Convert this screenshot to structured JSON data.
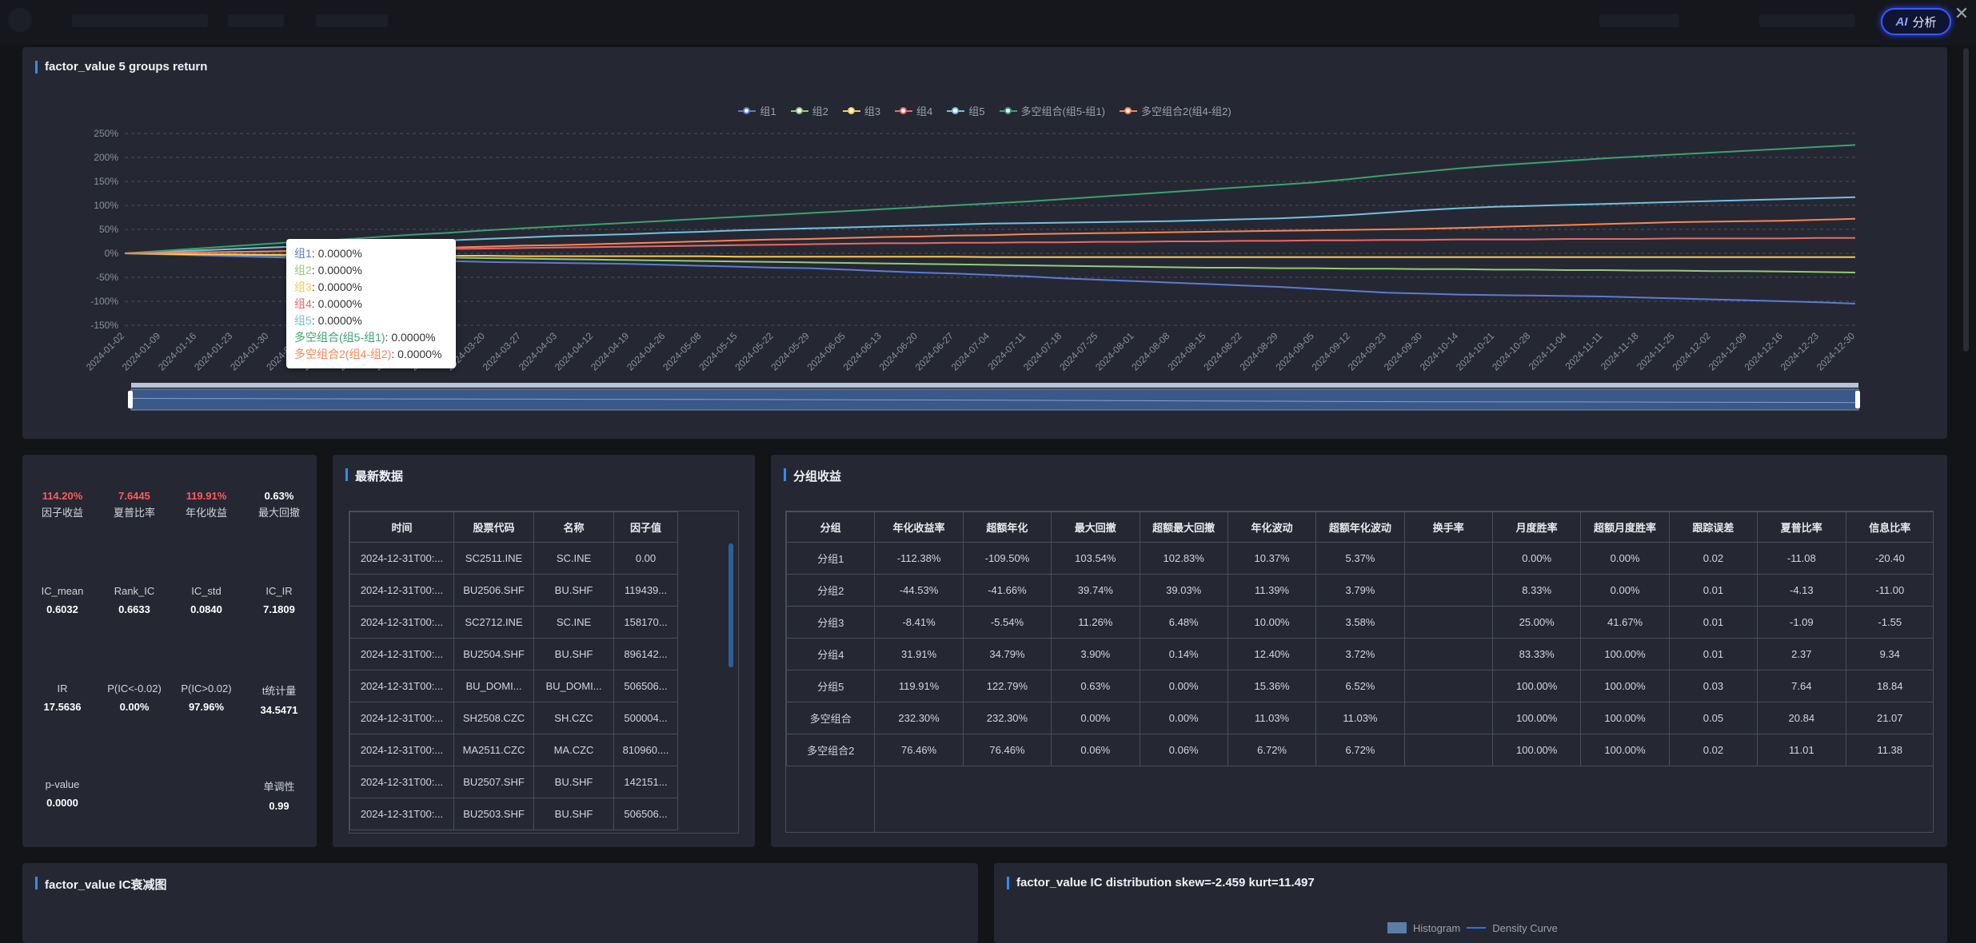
{
  "header": {
    "ai_label": "分析",
    "ai_badge": "AI",
    "close_glyph": "✕"
  },
  "chart_panel": {
    "title": "factor_value 5 groups return",
    "chart_data": {
      "type": "line",
      "ylim": [
        -150,
        250
      ],
      "yticks": [
        "250%",
        "200%",
        "150%",
        "100%",
        "50%",
        "0%",
        "-50%",
        "-100%",
        "-150%"
      ],
      "x": [
        "2024-01-02",
        "2024-01-09",
        "2024-01-16",
        "2024-01-23",
        "2024-01-30",
        "2024-02-06",
        "2024-02-21",
        "2024-02-28",
        "2024-03-06",
        "2024-03-13",
        "2024-03-20",
        "2024-03-27",
        "2024-04-03",
        "2024-04-12",
        "2024-04-19",
        "2024-04-26",
        "2024-05-08",
        "2024-05-15",
        "2024-05-22",
        "2024-05-29",
        "2024-06-05",
        "2024-06-13",
        "2024-06-20",
        "2024-06-27",
        "2024-07-04",
        "2024-07-11",
        "2024-07-18",
        "2024-07-25",
        "2024-08-01",
        "2024-08-08",
        "2024-08-15",
        "2024-08-22",
        "2024-08-29",
        "2024-09-05",
        "2024-09-12",
        "2024-09-23",
        "2024-09-30",
        "2024-10-14",
        "2024-10-21",
        "2024-10-28",
        "2024-11-04",
        "2024-11-11",
        "2024-11-18",
        "2024-11-25",
        "2024-12-02",
        "2024-12-09",
        "2024-12-16",
        "2024-12-23",
        "2024-12-30"
      ],
      "series": [
        {
          "name": "组1",
          "color": "#5b7bd5",
          "values": [
            0,
            -2,
            -4,
            -6,
            -8,
            -10,
            -11,
            -13,
            -15,
            -16,
            -18,
            -19,
            -20,
            -21,
            -22,
            -24,
            -26,
            -28,
            -30,
            -31,
            -34,
            -37,
            -40,
            -42,
            -45,
            -48,
            -52,
            -55,
            -58,
            -61,
            -64,
            -67,
            -70,
            -74,
            -78,
            -82,
            -84,
            -86,
            -87,
            -88,
            -89,
            -90,
            -92,
            -94,
            -96,
            -98,
            -100,
            -102,
            -105
          ]
        },
        {
          "name": "组2",
          "color": "#91cc75",
          "values": [
            0,
            -1,
            -2,
            -3,
            -4,
            -5,
            -6,
            -7,
            -8,
            -9,
            -10,
            -11,
            -12,
            -13,
            -14,
            -15,
            -16,
            -17,
            -18,
            -19,
            -20,
            -21,
            -22,
            -23,
            -24,
            -25,
            -26,
            -27,
            -28,
            -29,
            -30,
            -30,
            -31,
            -31,
            -32,
            -32,
            -33,
            -33,
            -34,
            -34,
            -35,
            -35,
            -36,
            -36,
            -37,
            -37,
            -38,
            -39,
            -40
          ]
        },
        {
          "name": "组3",
          "color": "#fac858",
          "values": [
            0,
            -1,
            -2,
            -2,
            -3,
            -3,
            -4,
            -4,
            -5,
            -5,
            -5,
            -6,
            -6,
            -6,
            -6,
            -6,
            -6,
            -7,
            -7,
            -7,
            -7,
            -7,
            -7,
            -7,
            -8,
            -8,
            -8,
            -8,
            -8,
            -8,
            -8,
            -8,
            -8,
            -8,
            -8,
            -8,
            -8,
            -8,
            -8,
            -8,
            -8,
            -8,
            -8,
            -8,
            -8,
            -8,
            -8,
            -8,
            -8
          ]
        },
        {
          "name": "组4",
          "color": "#ee6666",
          "values": [
            0,
            1,
            2,
            3,
            4,
            5,
            6,
            7,
            8,
            9,
            10,
            11,
            12,
            13,
            14,
            15,
            16,
            17,
            18,
            19,
            20,
            21,
            21,
            22,
            22,
            23,
            23,
            24,
            24,
            25,
            25,
            26,
            26,
            27,
            27,
            28,
            28,
            29,
            29,
            29,
            30,
            30,
            30,
            31,
            31,
            31,
            31,
            32,
            32
          ]
        },
        {
          "name": "组5",
          "color": "#73c0de",
          "values": [
            0,
            3,
            6,
            9,
            12,
            15,
            18,
            21,
            24,
            27,
            30,
            33,
            36,
            38,
            40,
            43,
            45,
            48,
            50,
            52,
            54,
            56,
            58,
            60,
            62,
            63,
            64,
            65,
            66,
            67,
            69,
            71,
            73,
            76,
            80,
            85,
            90,
            94,
            97,
            99,
            101,
            103,
            105,
            107,
            109,
            111,
            113,
            115,
            117
          ]
        },
        {
          "name": "多空组合(组5-组1)",
          "color": "#3ba272",
          "values": [
            0,
            5,
            10,
            15,
            20,
            25,
            29,
            34,
            39,
            43,
            48,
            52,
            56,
            60,
            64,
            68,
            72,
            76,
            80,
            84,
            88,
            92,
            96,
            100,
            104,
            108,
            113,
            118,
            123,
            128,
            133,
            138,
            143,
            148,
            155,
            163,
            170,
            177,
            183,
            188,
            193,
            198,
            202,
            206,
            210,
            214,
            218,
            222,
            226
          ]
        },
        {
          "name": "多空组合2(组4-组2)",
          "color": "#fc8452",
          "values": [
            0,
            1,
            2,
            3,
            4,
            6,
            7,
            9,
            11,
            12,
            14,
            16,
            17,
            19,
            21,
            23,
            25,
            27,
            29,
            30,
            32,
            34,
            35,
            37,
            38,
            40,
            41,
            42,
            43,
            44,
            45,
            46,
            47,
            48,
            49,
            50,
            51,
            53,
            55,
            57,
            59,
            61,
            63,
            65,
            66,
            67,
            68,
            70,
            72
          ]
        }
      ]
    },
    "tooltip": [
      {
        "name": "组1",
        "value": "0.0000%",
        "color": "#5b7bd5"
      },
      {
        "name": "组2",
        "value": "0.0000%",
        "color": "#91cc75"
      },
      {
        "name": "组3",
        "value": "0.0000%",
        "color": "#fac858"
      },
      {
        "name": "组4",
        "value": "0.0000%",
        "color": "#ee6666"
      },
      {
        "name": "组5",
        "value": "0.0000%",
        "color": "#73c0de"
      },
      {
        "name": "多空组合(组5-组1)",
        "value": "0.0000%",
        "color": "#3ba272"
      },
      {
        "name": "多空组合2(组4-组2)",
        "value": "0.0000%",
        "color": "#fc8452"
      }
    ]
  },
  "stats": {
    "row1": [
      {
        "value": "114.20%",
        "label": "因子收益",
        "color": "#ff5b5b"
      },
      {
        "value": "7.6445",
        "label": "夏普比率",
        "color": "#ff5b5b"
      },
      {
        "value": "119.91%",
        "label": "年化收益",
        "color": "#ff5b5b"
      },
      {
        "value": "0.63%",
        "label": "最大回撤",
        "color": "#ffffff"
      }
    ],
    "row2": [
      {
        "label": "IC_mean",
        "value": "0.6032"
      },
      {
        "label": "Rank_IC",
        "value": "0.6633"
      },
      {
        "label": "IC_std",
        "value": "0.0840"
      },
      {
        "label": "IC_IR",
        "value": "7.1809"
      }
    ],
    "row3": [
      {
        "label": "IR",
        "value": "17.5636"
      },
      {
        "label": "P(IC<-0.02)",
        "value": "0.00%"
      },
      {
        "label": "P(IC>0.02)",
        "value": "97.96%"
      },
      {
        "label": "t统计量",
        "value": "34.5471"
      }
    ],
    "row4": [
      {
        "label": "p-value",
        "value": "0.0000"
      },
      {
        "label": "单调性",
        "value": "0.99"
      }
    ]
  },
  "latest": {
    "title": "最新数据",
    "columns": [
      "时间",
      "股票代码",
      "名称",
      "因子值"
    ],
    "rows": [
      [
        "2024-12-31T00:...",
        "SC2511.INE",
        "SC.INE",
        "0.00"
      ],
      [
        "2024-12-31T00:...",
        "BU2506.SHF",
        "BU.SHF",
        "119439..."
      ],
      [
        "2024-12-31T00:...",
        "SC2712.INE",
        "SC.INE",
        "158170..."
      ],
      [
        "2024-12-31T00:...",
        "BU2504.SHF",
        "BU.SHF",
        "896142..."
      ],
      [
        "2024-12-31T00:...",
        "BU_DOMI...",
        "BU_DOMI...",
        "506506..."
      ],
      [
        "2024-12-31T00:...",
        "SH2508.CZC",
        "SH.CZC",
        "500004..."
      ],
      [
        "2024-12-31T00:...",
        "MA2511.CZC",
        "MA.CZC",
        "810960...."
      ],
      [
        "2024-12-31T00:...",
        "BU2507.SHF",
        "BU.SHF",
        "142151..."
      ],
      [
        "2024-12-31T00:...",
        "BU2503.SHF",
        "BU.SHF",
        "506506..."
      ]
    ]
  },
  "groups": {
    "title": "分组收益",
    "columns": [
      "分组",
      "年化收益率",
      "超额年化",
      "最大回撤",
      "超额最大回撤",
      "年化波动",
      "超额年化波动",
      "换手率",
      "月度胜率",
      "超额月度胜率",
      "跟踪误差",
      "夏普比率",
      "信息比率"
    ],
    "rows": [
      [
        "分组1",
        "-112.38%",
        "-109.50%",
        "103.54%",
        "102.83%",
        "10.37%",
        "5.37%",
        "",
        "0.00%",
        "0.00%",
        "0.02",
        "-11.08",
        "-20.40"
      ],
      [
        "分组2",
        "-44.53%",
        "-41.66%",
        "39.74%",
        "39.03%",
        "11.39%",
        "3.79%",
        "",
        "8.33%",
        "0.00%",
        "0.01",
        "-4.13",
        "-11.00"
      ],
      [
        "分组3",
        "-8.41%",
        "-5.54%",
        "11.26%",
        "6.48%",
        "10.00%",
        "3.58%",
        "",
        "25.00%",
        "41.67%",
        "0.01",
        "-1.09",
        "-1.55"
      ],
      [
        "分组4",
        "31.91%",
        "34.79%",
        "3.90%",
        "0.14%",
        "12.40%",
        "3.72%",
        "",
        "83.33%",
        "100.00%",
        "0.01",
        "2.37",
        "9.34"
      ],
      [
        "分组5",
        "119.91%",
        "122.79%",
        "0.63%",
        "0.00%",
        "15.36%",
        "6.52%",
        "",
        "100.00%",
        "100.00%",
        "0.03",
        "7.64",
        "18.84"
      ],
      [
        "多空组合",
        "232.30%",
        "232.30%",
        "0.00%",
        "0.00%",
        "11.03%",
        "11.03%",
        "",
        "100.00%",
        "100.00%",
        "0.05",
        "20.84",
        "21.07"
      ],
      [
        "多空组合2",
        "76.46%",
        "76.46%",
        "0.06%",
        "0.06%",
        "6.72%",
        "6.72%",
        "",
        "100.00%",
        "100.00%",
        "0.02",
        "11.01",
        "11.38"
      ]
    ]
  },
  "bottom_left": {
    "title": "factor_value IC衰减图"
  },
  "bottom_right": {
    "title": "factor_value IC distribution skew=-2.459 kurt=11.497",
    "legend": [
      "Histogram",
      "Density Curve"
    ]
  }
}
